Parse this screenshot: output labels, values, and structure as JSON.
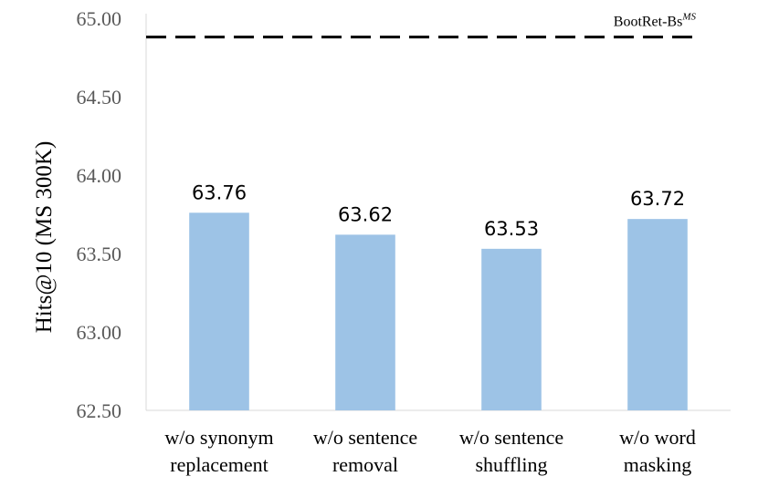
{
  "chart_data": {
    "type": "bar",
    "categories": [
      [
        "w/o synonym",
        "replacement"
      ],
      [
        "w/o sentence",
        "removal"
      ],
      [
        "w/o sentence",
        "shuffling"
      ],
      [
        "w/o word",
        "masking"
      ]
    ],
    "values": [
      63.76,
      63.62,
      63.53,
      63.72
    ],
    "data_labels": [
      "63.76",
      "63.62",
      "63.53",
      "63.72"
    ],
    "ylabel": "Hits@10 (MS 300K)",
    "ylim": [
      62.5,
      65.0
    ],
    "yticks": [
      62.5,
      63.0,
      63.5,
      64.0,
      64.5,
      65.0
    ],
    "ytick_labels": [
      "62.50",
      "63.00",
      "63.50",
      "64.00",
      "64.50",
      "65.00"
    ],
    "grid": false,
    "bar_color": "#9DC3E6",
    "reference_line": {
      "value": 64.88,
      "label": "BootRet-Bs",
      "label_sup": "MS",
      "style": "dashed",
      "color": "#000000"
    }
  }
}
